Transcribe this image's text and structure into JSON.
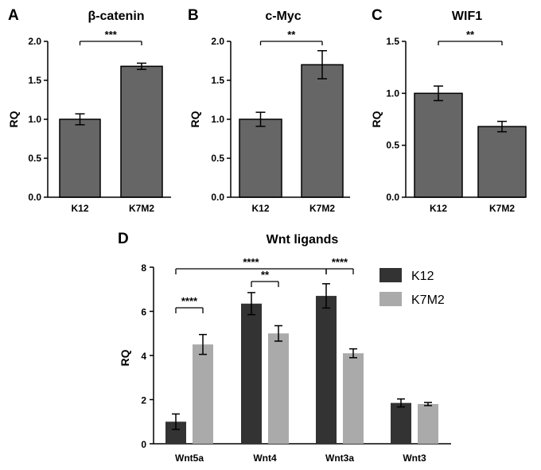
{
  "chart_data": [
    {
      "panel": "A",
      "type": "bar",
      "title": "β-catenin",
      "ylabel": "RQ",
      "categories": [
        "K12",
        "K7M2"
      ],
      "values": [
        1.0,
        1.68
      ],
      "errors": [
        0.07,
        0.04
      ],
      "ylim": [
        0,
        2.0
      ],
      "yticks": [
        "0.0",
        "0.5",
        "1.0",
        "1.5",
        "2.0"
      ],
      "significance": [
        {
          "from": "K12",
          "to": "K7M2",
          "label": "***"
        }
      ],
      "colors": {
        "bar": "#666666"
      }
    },
    {
      "panel": "B",
      "type": "bar",
      "title": "c-Myc",
      "ylabel": "RQ",
      "categories": [
        "K12",
        "K7M2"
      ],
      "values": [
        1.0,
        1.7
      ],
      "errors": [
        0.09,
        0.18
      ],
      "ylim": [
        0,
        2.0
      ],
      "yticks": [
        "0.0",
        "0.5",
        "1.0",
        "1.5",
        "2.0"
      ],
      "significance": [
        {
          "from": "K12",
          "to": "K7M2",
          "label": "**"
        }
      ],
      "colors": {
        "bar": "#666666"
      }
    },
    {
      "panel": "C",
      "type": "bar",
      "title": "WIF1",
      "ylabel": "RQ",
      "categories": [
        "K12",
        "K7M2"
      ],
      "values": [
        1.0,
        0.68
      ],
      "errors": [
        0.07,
        0.05
      ],
      "ylim": [
        0,
        1.5
      ],
      "yticks": [
        "0.0",
        "0.5",
        "1.0",
        "1.5"
      ],
      "significance": [
        {
          "from": "K12",
          "to": "K7M2",
          "label": "**"
        }
      ],
      "colors": {
        "bar": "#666666"
      }
    },
    {
      "panel": "D",
      "type": "bar",
      "title": "Wnt ligands",
      "ylabel": "RQ",
      "categories": [
        "Wnt5a",
        "Wnt4",
        "Wnt3a",
        "Wnt3"
      ],
      "series": [
        {
          "name": "K12",
          "values": [
            1.0,
            6.35,
            6.7,
            1.85
          ],
          "errors": [
            0.35,
            0.5,
            0.55,
            0.18
          ]
        },
        {
          "name": "K7M2",
          "values": [
            4.5,
            5.0,
            4.1,
            1.8
          ],
          "errors": [
            0.45,
            0.35,
            0.2,
            0.07
          ]
        }
      ],
      "ylim": [
        0,
        8
      ],
      "yticks": [
        "0",
        "2",
        "4",
        "6",
        "8"
      ],
      "significance": [
        {
          "label": "****",
          "note": "Wnt5a K12 vs K7M2"
        },
        {
          "label": "**",
          "note": "Wnt4 K12 vs K7M2"
        },
        {
          "label": "****",
          "note": "Wnt5a K12 vs Wnt3a K12"
        },
        {
          "label": "****",
          "note": "Wnt3a K12 vs K7M2"
        }
      ],
      "legend_position": "top-right",
      "colors": {
        "K12": "#333333",
        "K7M2": "#aaaaaa"
      }
    }
  ]
}
